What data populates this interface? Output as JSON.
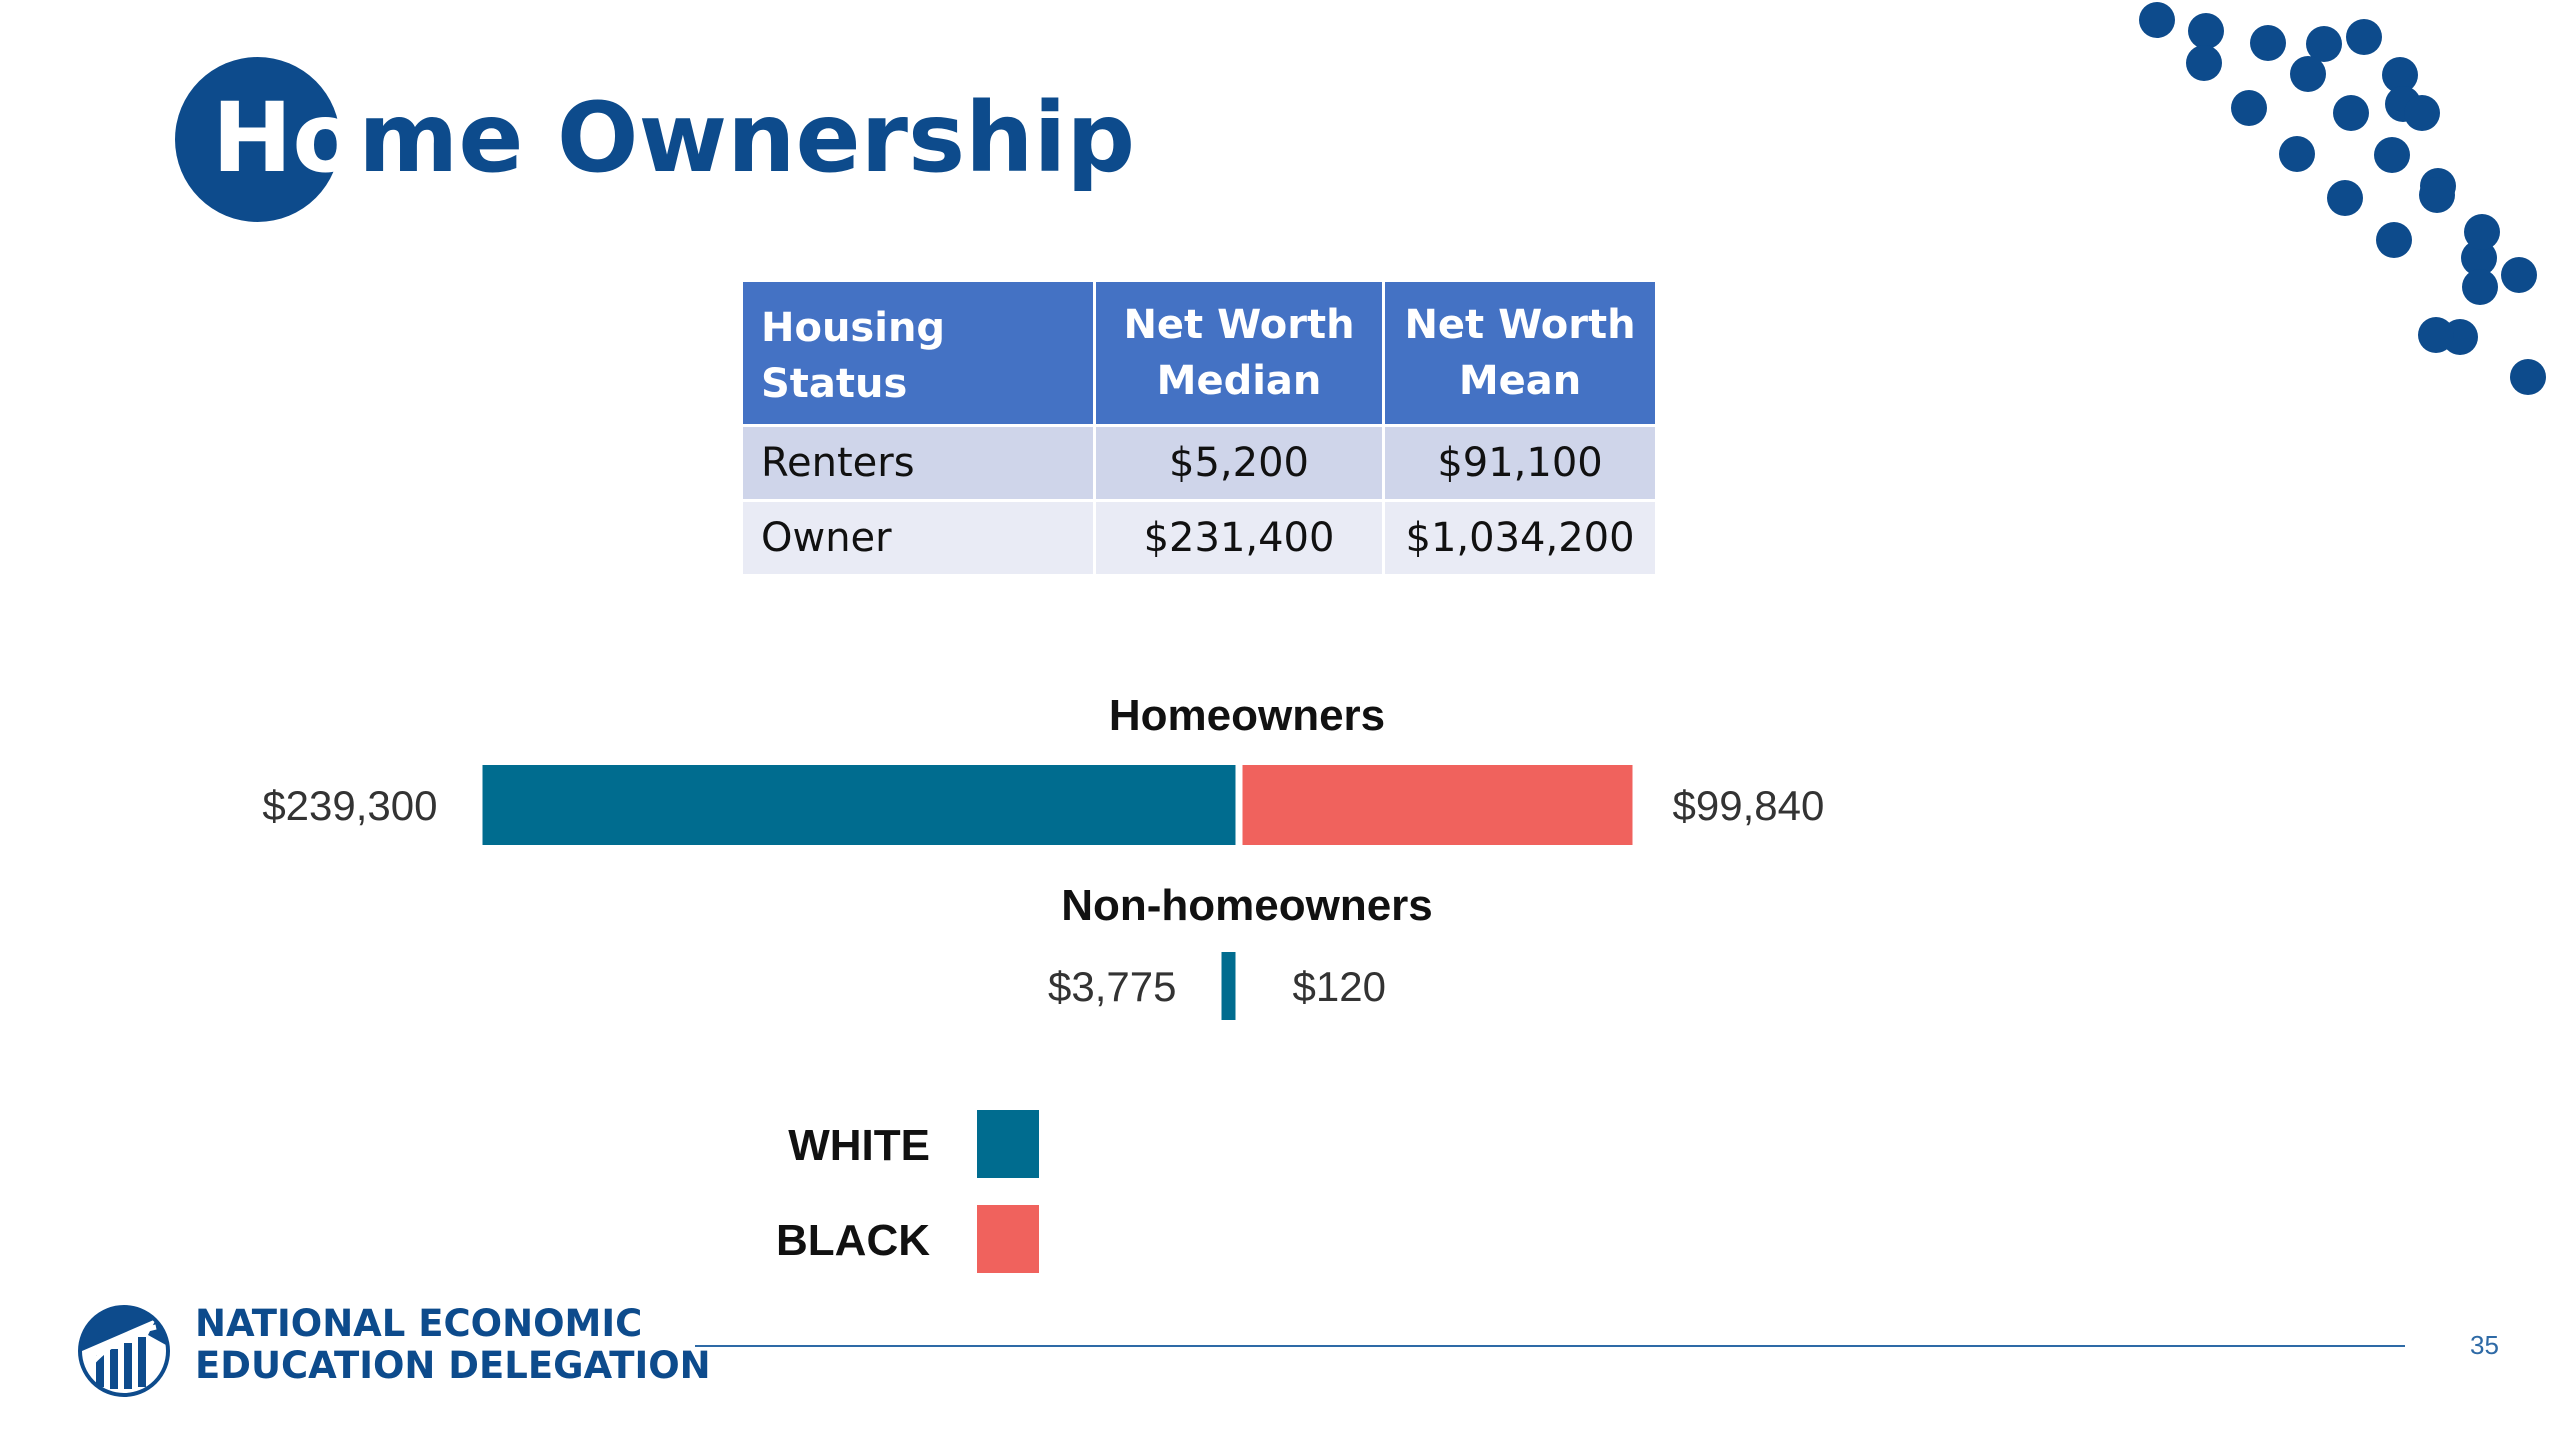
{
  "title": {
    "lead": "Ho",
    "rest": "me Ownership"
  },
  "colors": {
    "brand_blue": "#0d4b8c",
    "table_header": "#4472c4",
    "white_series": "#006c8f",
    "black_series": "#f0625d"
  },
  "table": {
    "headers": [
      "Housing Status",
      "Net Worth Median",
      "Net Worth Mean"
    ],
    "rows": [
      [
        "Renters",
        "$5,200",
        "$91,100"
      ],
      [
        "Owner",
        "$231,400",
        "$1,034,200"
      ]
    ]
  },
  "chart_data": {
    "type": "bar",
    "orientation": "diverging-horizontal",
    "groups": [
      {
        "label": "Homeowners",
        "white": 239300,
        "black": 99840,
        "white_label": "$239,300",
        "black_label": "$99,840"
      },
      {
        "label": "Non-homeowners",
        "white": 3775,
        "black": 120,
        "white_label": "$3,775",
        "black_label": "$120"
      }
    ],
    "series": [
      {
        "name": "WHITE",
        "color": "#006c8f"
      },
      {
        "name": "BLACK",
        "color": "#f0625d"
      }
    ],
    "legend_position": "bottom-left"
  },
  "footer": {
    "org_line1": "NATIONAL ECONOMIC",
    "org_line2": "EDUCATION DELEGATION",
    "slide_number": "35",
    "logo_icon": "columns-arrow-logo-icon"
  }
}
